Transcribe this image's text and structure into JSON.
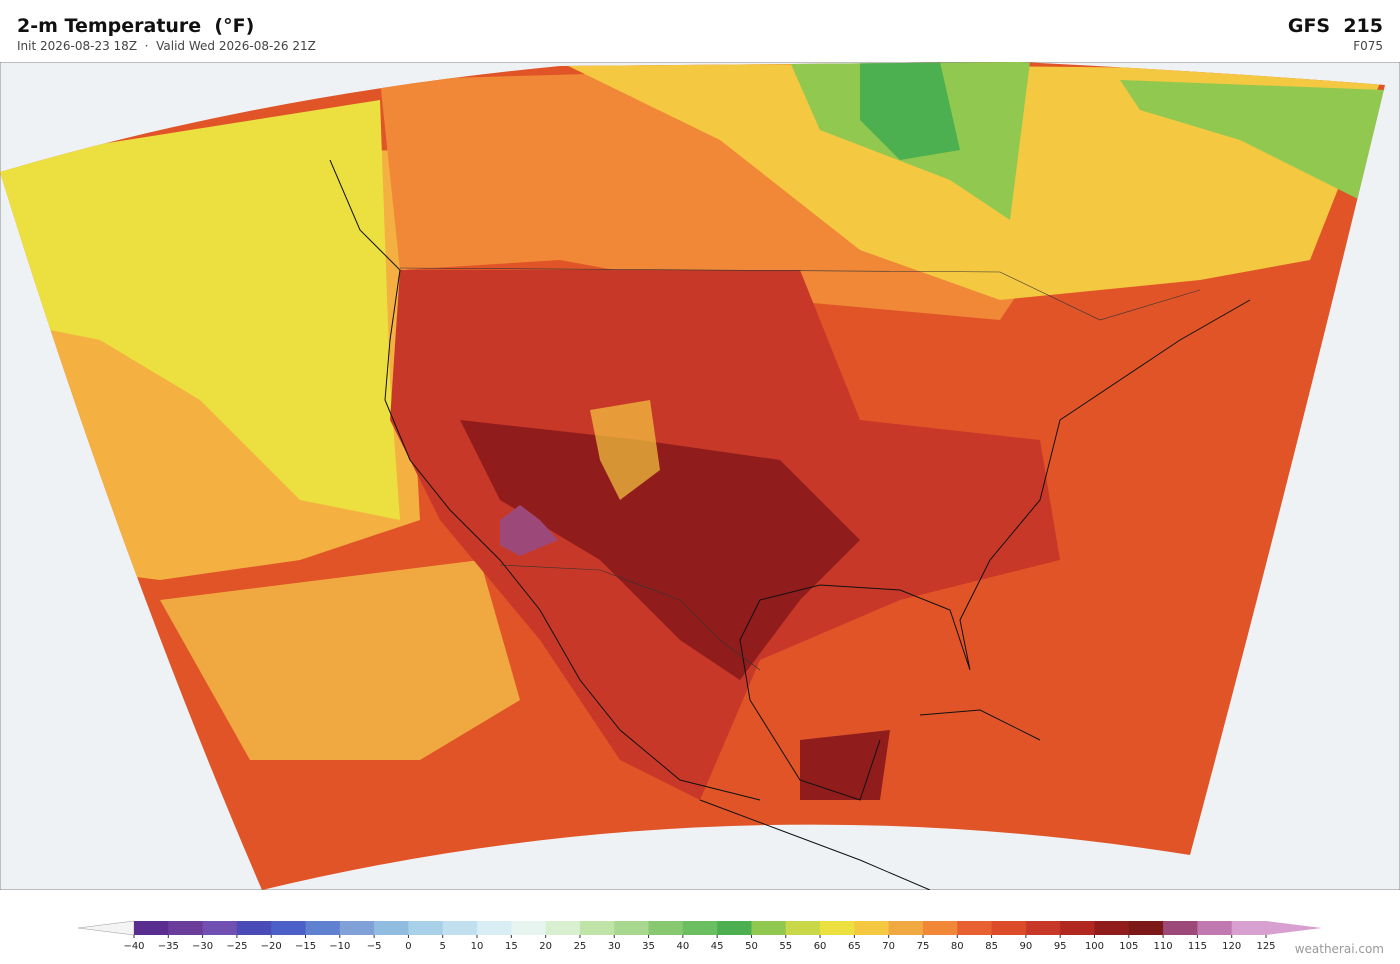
{
  "header": {
    "title": "2-m Temperature  (°F)",
    "subtitle": "Init 2026-08-23 18Z  ·  Valid Wed 2026-08-26 21Z",
    "model": "GFS  215",
    "forecast": "F075"
  },
  "colorbar": {
    "ticks": [
      {
        "value": -40,
        "label": "−40"
      },
      {
        "value": -35,
        "label": "−35"
      },
      {
        "value": -30,
        "label": "−30"
      },
      {
        "value": -25,
        "label": "−25"
      },
      {
        "value": -20,
        "label": "−20"
      },
      {
        "value": -15,
        "label": "−15"
      },
      {
        "value": -10,
        "label": "−10"
      },
      {
        "value": -5,
        "label": "−5"
      },
      0,
      5,
      10,
      15,
      20,
      25,
      30,
      35,
      40,
      45,
      50,
      55,
      60,
      65,
      70,
      75,
      80,
      85,
      90,
      95,
      100,
      105,
      110,
      115,
      120,
      125
    ],
    "colors": [
      "#5a2d91",
      "#6a3d9a",
      "#7050b0",
      "#4a4ab8",
      "#4a60c8",
      "#6080d0",
      "#80a0d8",
      "#90bce0",
      "#a8d0e8",
      "#c0e0f0",
      "#d8eef4",
      "#e8f4f0",
      "#d8f0d0",
      "#c0e4a8",
      "#a8d890",
      "#88c870",
      "#6cbf60",
      "#4caf50",
      "#90c850",
      "#c8d848",
      "#ece040",
      "#f4c840",
      "#f0a840",
      "#f08838",
      "#e86030",
      "#dc4c28",
      "#c83828",
      "#b02820",
      "#901c1c",
      "#7c1818",
      "#9c4878",
      "#c078b0",
      "#d8a0d0"
    ],
    "under_color": "#f4f4f4",
    "over_color": "#d8a0d0"
  },
  "footer": {
    "watermark": "weatherai.com"
  }
}
